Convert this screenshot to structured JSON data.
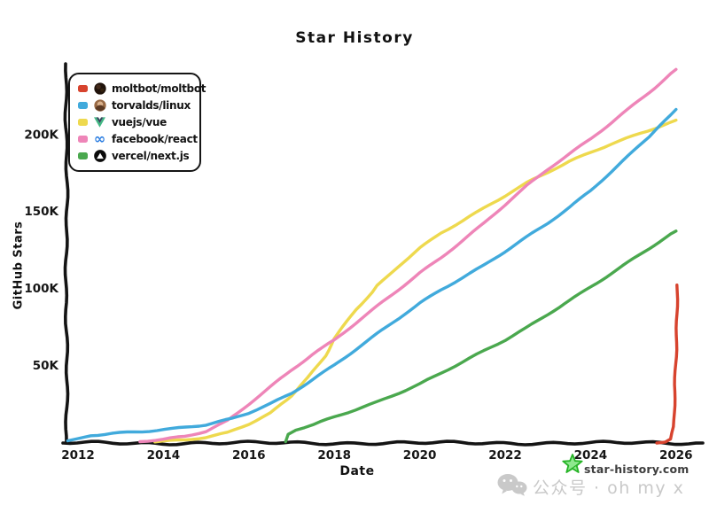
{
  "title": "Star History",
  "watermark": {
    "site": "star-history.com",
    "wechat": "公众号 · oh my x"
  },
  "colors": {
    "axis": "#141414",
    "watermark_site_text": "#3e3e3e",
    "watermark_faint": "#c9c9c9",
    "star_logo_green": "#27b427"
  },
  "chart_data": {
    "type": "line",
    "title": "Star History",
    "xlabel": "Date",
    "ylabel": "GitHub Stars",
    "units": "thousands of stars",
    "grid": false,
    "legend_position": "top-left",
    "xlim": [
      2011.7,
      2026.6
    ],
    "ylim": [
      0,
      250
    ],
    "x_ticks": [
      2012,
      2014,
      2016,
      2018,
      2020,
      2022,
      2024,
      2026
    ],
    "y_ticks": [
      {
        "label": "50K",
        "value": 50
      },
      {
        "label": "100K",
        "value": 100
      },
      {
        "label": "150K",
        "value": 150
      },
      {
        "label": "200K",
        "value": 200
      }
    ],
    "series": [
      {
        "name": "moltbot/moltbot",
        "color": "#d7432e",
        "icon": "moltbot-avatar",
        "points": [
          [
            2025.55,
            0
          ],
          [
            2025.75,
            0.5
          ],
          [
            2025.88,
            2
          ],
          [
            2025.96,
            10
          ],
          [
            2026.0,
            60
          ],
          [
            2026.02,
            102
          ]
        ]
      },
      {
        "name": "torvalds/linux",
        "color": "#41aadc",
        "icon": "torvalds-avatar",
        "points": [
          [
            2011.76,
            0.5
          ],
          [
            2012.0,
            2
          ],
          [
            2012.3,
            4.5
          ],
          [
            2012.8,
            6
          ],
          [
            2013.5,
            7
          ],
          [
            2014.2,
            8.5
          ],
          [
            2015.0,
            11
          ],
          [
            2015.6,
            15
          ],
          [
            2016.0,
            19
          ],
          [
            2016.5,
            25
          ],
          [
            2017.0,
            32
          ],
          [
            2017.5,
            41
          ],
          [
            2018.0,
            50
          ],
          [
            2018.5,
            60
          ],
          [
            2019.0,
            70
          ],
          [
            2019.5,
            80
          ],
          [
            2020.0,
            90
          ],
          [
            2020.5,
            99
          ],
          [
            2021.0,
            107
          ],
          [
            2021.5,
            115
          ],
          [
            2022.0,
            124
          ],
          [
            2022.5,
            133
          ],
          [
            2023.0,
            142
          ],
          [
            2023.5,
            152
          ],
          [
            2024.0,
            163
          ],
          [
            2024.5,
            176
          ],
          [
            2025.0,
            189
          ],
          [
            2025.5,
            202
          ],
          [
            2026.0,
            216
          ]
        ]
      },
      {
        "name": "vuejs/vue",
        "color": "#eed94e",
        "icon": "vue-logo",
        "points": [
          [
            2013.8,
            0.3
          ],
          [
            2014.5,
            1
          ],
          [
            2015.0,
            3
          ],
          [
            2015.5,
            6
          ],
          [
            2016.0,
            12
          ],
          [
            2016.5,
            19
          ],
          [
            2017.0,
            30
          ],
          [
            2017.4,
            42
          ],
          [
            2017.8,
            56
          ],
          [
            2018.0,
            67
          ],
          [
            2018.5,
            86
          ],
          [
            2019.0,
            101
          ],
          [
            2019.5,
            114
          ],
          [
            2020.0,
            126
          ],
          [
            2020.5,
            136
          ],
          [
            2021.0,
            144
          ],
          [
            2021.5,
            152
          ],
          [
            2022.0,
            160
          ],
          [
            2022.5,
            168
          ],
          [
            2023.0,
            175
          ],
          [
            2023.5,
            182
          ],
          [
            2024.0,
            188
          ],
          [
            2024.5,
            194
          ],
          [
            2025.0,
            199
          ],
          [
            2025.5,
            204
          ],
          [
            2026.0,
            209
          ]
        ]
      },
      {
        "name": "facebook/react",
        "color": "#ee85b8",
        "icon": "react-logo",
        "points": [
          [
            2013.45,
            0.3
          ],
          [
            2014.0,
            1.5
          ],
          [
            2014.5,
            3.5
          ],
          [
            2015.0,
            7
          ],
          [
            2015.5,
            14
          ],
          [
            2016.0,
            25
          ],
          [
            2016.5,
            36
          ],
          [
            2017.0,
            47
          ],
          [
            2017.5,
            57
          ],
          [
            2018.0,
            66
          ],
          [
            2018.5,
            77
          ],
          [
            2019.0,
            88
          ],
          [
            2019.5,
            99
          ],
          [
            2020.0,
            110
          ],
          [
            2020.5,
            120
          ],
          [
            2021.0,
            131
          ],
          [
            2021.5,
            142
          ],
          [
            2022.0,
            154
          ],
          [
            2022.5,
            166
          ],
          [
            2023.0,
            177
          ],
          [
            2023.5,
            187
          ],
          [
            2024.0,
            197
          ],
          [
            2024.5,
            208
          ],
          [
            2025.0,
            219
          ],
          [
            2025.5,
            230
          ],
          [
            2026.0,
            242
          ]
        ]
      },
      {
        "name": "vercel/next.js",
        "color": "#4aa84e",
        "icon": "vercel-logo",
        "points": [
          [
            2016.85,
            0.3
          ],
          [
            2016.92,
            5
          ],
          [
            2017.1,
            8
          ],
          [
            2017.5,
            11
          ],
          [
            2018.0,
            16
          ],
          [
            2018.5,
            21
          ],
          [
            2019.0,
            26
          ],
          [
            2019.5,
            32
          ],
          [
            2020.0,
            38
          ],
          [
            2020.5,
            45
          ],
          [
            2021.0,
            52
          ],
          [
            2021.5,
            59
          ],
          [
            2022.0,
            66
          ],
          [
            2022.5,
            74
          ],
          [
            2023.0,
            83
          ],
          [
            2023.5,
            92
          ],
          [
            2024.0,
            101
          ],
          [
            2024.5,
            110
          ],
          [
            2025.0,
            119
          ],
          [
            2025.5,
            128
          ],
          [
            2026.0,
            137
          ]
        ]
      }
    ]
  }
}
